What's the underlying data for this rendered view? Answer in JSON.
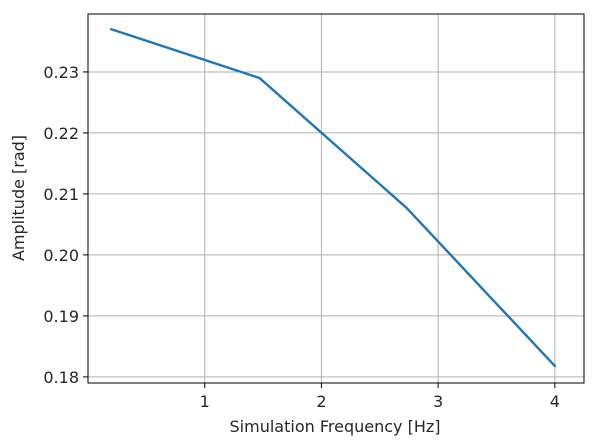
{
  "chart_data": {
    "type": "line",
    "title": "",
    "xlabel": "Simulation Frequency [Hz]",
    "ylabel": "Amplitude [rad]",
    "xlim": [
      0.0,
      4.25
    ],
    "ylim": [
      0.179,
      0.2395
    ],
    "xticks": [
      1,
      2,
      3,
      4
    ],
    "xtick_labels": [
      "1",
      "2",
      "3",
      "4"
    ],
    "yticks": [
      0.18,
      0.19,
      0.2,
      0.21,
      0.22,
      0.23
    ],
    "ytick_labels": [
      "0.18",
      "0.19",
      "0.20",
      "0.21",
      "0.22",
      "0.23"
    ],
    "grid": true,
    "series": [
      {
        "color": "#1f77b4",
        "x": [
          0.2,
          1.47,
          2.73,
          4.0
        ],
        "y": [
          0.237,
          0.229,
          0.2077,
          0.1818
        ]
      }
    ]
  }
}
